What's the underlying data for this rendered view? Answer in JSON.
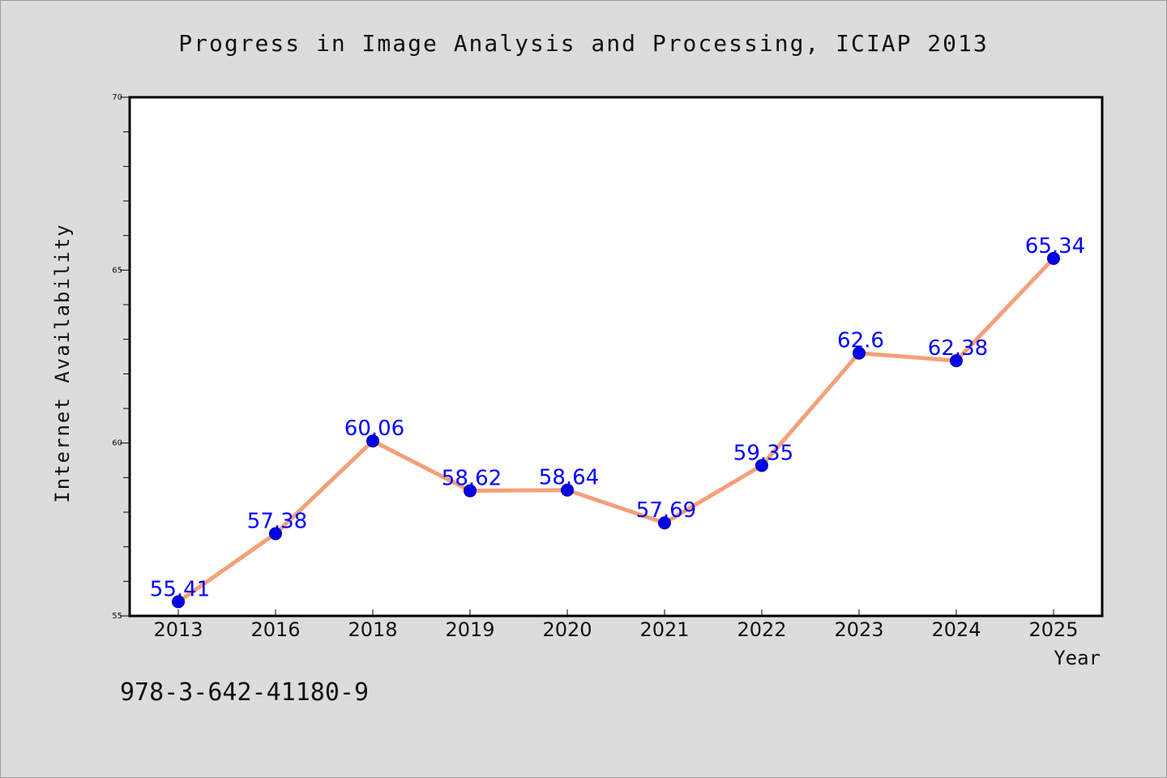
{
  "chart_data": {
    "type": "line",
    "title": "Progress in Image Analysis and Processing, ICIAP 2013",
    "xlabel": "Year",
    "ylabel": "Internet Availability",
    "categories": [
      "2013",
      "2016",
      "2018",
      "2019",
      "2020",
      "2021",
      "2022",
      "2023",
      "2024",
      "2025"
    ],
    "series": [
      {
        "values": [
          55.41,
          57.38,
          60.06,
          58.62,
          58.64,
          57.69,
          59.35,
          62.6,
          62.38,
          65.34
        ],
        "labels": [
          "55.41",
          "57.38",
          "60.06",
          "58.62",
          "58.64",
          "57.69",
          "59.35",
          "62.6",
          "62.38",
          "65.34"
        ],
        "line_color": "#f4a07a",
        "marker_color": "#0000ee",
        "label_color": "#0000ff"
      }
    ],
    "ylim": [
      55,
      70
    ],
    "yticks": [
      "55",
      "60",
      "65",
      "70"
    ],
    "grid": false,
    "legend": "none"
  },
  "footnote": "978-3-642-41180-9",
  "colors": {
    "background": "#dcdcdc",
    "plot_background": "#ffffff",
    "axis": "#000000"
  }
}
